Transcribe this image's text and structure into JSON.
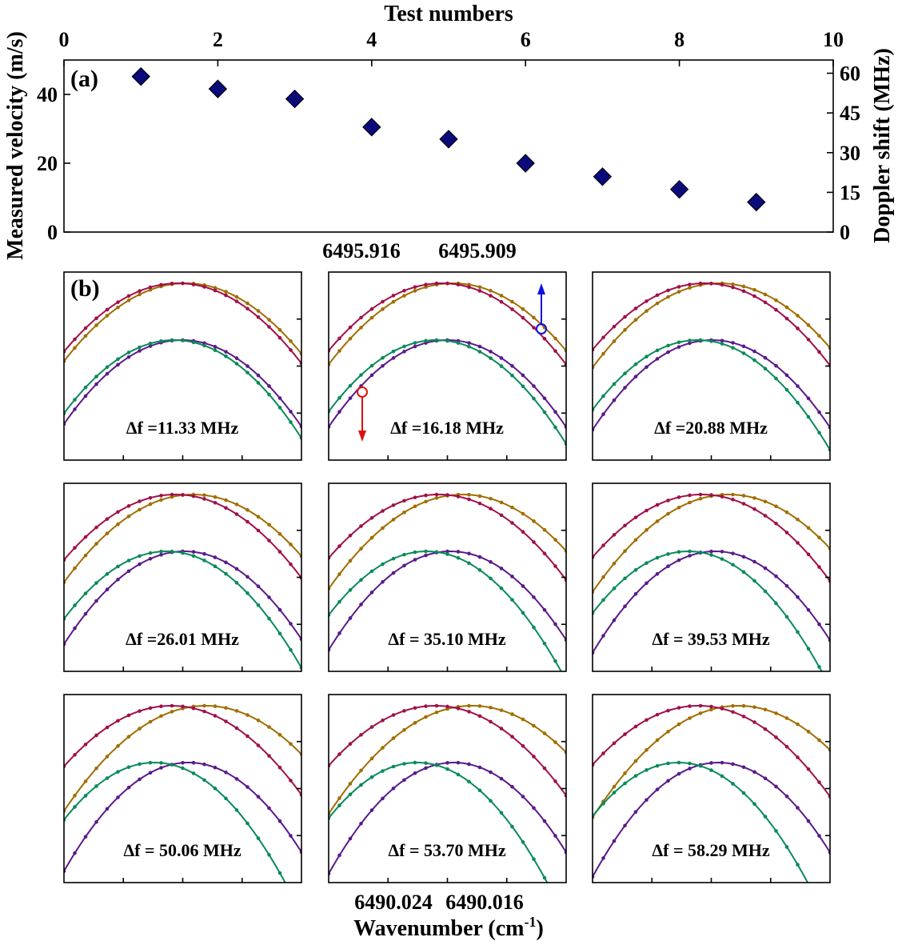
{
  "chart_data": [
    {
      "type": "scatter",
      "panel_label": "(a)",
      "title": "Test numbers",
      "xlabel": "Test numbers",
      "ylabel": "Measured velocity (m/s)",
      "y2label": "Doppler shift (MHz)",
      "xlim": [
        0,
        10
      ],
      "ylim": [
        0,
        50
      ],
      "y2lim": [
        0,
        65
      ],
      "xticks": [
        "0",
        "2",
        "4",
        "6",
        "8",
        "10"
      ],
      "yticks": [
        "0",
        "20",
        "40"
      ],
      "y2ticks": [
        "0",
        "15",
        "30",
        "45",
        "60"
      ],
      "marker": "diamond",
      "marker_color": "#0a0a7a",
      "x": [
        1,
        2,
        3,
        4,
        5,
        6,
        7,
        8,
        9
      ],
      "y": [
        45.2,
        41.6,
        38.7,
        30.5,
        27.0,
        20.0,
        16.1,
        12.4,
        8.7
      ]
    },
    {
      "type": "line",
      "panel_label": "(b)",
      "xlabel": "Wavenumber (cm",
      "xlabel_sup": "-1",
      "xlabel_close": ")",
      "top_ticks": [
        "6495.916",
        "6495.909"
      ],
      "bottom_ticks": [
        "6490.024",
        "6490.016"
      ],
      "series_colors": {
        "upper_reference": "#a0104a",
        "upper_shifted": "#a06e00",
        "lower_reference": "#5a1a8a",
        "lower_shifted": "#0a8a5a"
      },
      "arrow_colors": {
        "up": "#1010e0",
        "down": "#e01010"
      },
      "panels": [
        {
          "label": "Δf =11.33 MHz",
          "doppler_shift_mhz": 11.33
        },
        {
          "label": "Δf =16.18 MHz",
          "doppler_shift_mhz": 16.18
        },
        {
          "label": "Δf =20.88 MHz",
          "doppler_shift_mhz": 20.88
        },
        {
          "label": "Δf =26.01 MHz",
          "doppler_shift_mhz": 26.01
        },
        {
          "label": "Δf =  35.10 MHz",
          "doppler_shift_mhz": 35.1
        },
        {
          "label": "Δf =  39.53 MHz",
          "doppler_shift_mhz": 39.53
        },
        {
          "label": "Δf =  50.06 MHz",
          "doppler_shift_mhz": 50.06
        },
        {
          "label": "Δf =  53.70 MHz",
          "doppler_shift_mhz": 53.7
        },
        {
          "label": "Δf =  58.29 MHz",
          "doppler_shift_mhz": 58.29
        }
      ]
    }
  ]
}
